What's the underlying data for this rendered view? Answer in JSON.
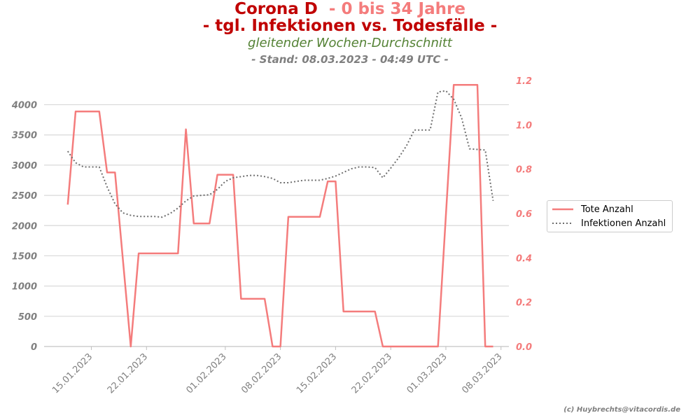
{
  "titles": {
    "line1_a": "Corona D",
    "line1_b": "- 0 bis 34 Jahre",
    "line2": "- tgl. Infektionen vs. Todesfälle -",
    "line3": "gleitender Wochen-Durchschnitt",
    "line4": "- Stand: 08.03.2023 - 04:49 UTC -"
  },
  "credit": "(c) Huybrechts@vitacordis.de",
  "colors": {
    "tote": "#f47c7c",
    "infektionen": "#6e6e6e",
    "title_dark": "#c00000",
    "subtitle_green": "#548235",
    "grid": "#d9d9d9",
    "axis_text": "#7f7f7f"
  },
  "chart_data": {
    "type": "line",
    "x_axis": {
      "type": "date",
      "range": [
        "2023-01-09",
        "2023-03-09"
      ],
      "tick_labels": [
        "15.01.2023",
        "22.01.2023",
        "01.02.2023",
        "08.02.2023",
        "15.02.2023",
        "22.02.2023",
        "01.03.2023",
        "08.03.2023"
      ],
      "tick_dates": [
        "2023-01-15",
        "2023-01-22",
        "2023-02-01",
        "2023-02-08",
        "2023-02-15",
        "2023-02-22",
        "2023-03-01",
        "2023-03-08"
      ]
    },
    "y_left": {
      "range": [
        0,
        4400
      ],
      "ticks": [
        0,
        500,
        1000,
        1500,
        2000,
        2500,
        3000,
        3500,
        4000
      ],
      "tick_labels": [
        "0",
        "500",
        "1000",
        "1500",
        "2000",
        "2500",
        "3000",
        "3500",
        "4000"
      ],
      "grid": true
    },
    "y_right": {
      "range": [
        0,
        1.2
      ],
      "ticks": [
        0.0,
        0.2,
        0.4,
        0.6,
        0.8,
        1.0,
        1.2
      ],
      "tick_labels": [
        "0.0",
        "0.2",
        "0.4",
        "0.6",
        "0.8",
        "1.0",
        "1.2"
      ]
    },
    "legend_position": "right",
    "series": [
      {
        "name": "Tote Anzahl",
        "axis": "right",
        "style": "solid",
        "points": [
          [
            "2023-01-12",
            0.64
          ],
          [
            "2023-01-13",
            1.06
          ],
          [
            "2023-01-16",
            1.06
          ],
          [
            "2023-01-17",
            0.785
          ],
          [
            "2023-01-18",
            0.785
          ],
          [
            "2023-01-20",
            0.0
          ],
          [
            "2023-01-21",
            0.42
          ],
          [
            "2023-01-26",
            0.42
          ],
          [
            "2023-01-27",
            0.98
          ],
          [
            "2023-01-28",
            0.555
          ],
          [
            "2023-01-30",
            0.555
          ],
          [
            "2023-01-31",
            0.775
          ],
          [
            "2023-02-02",
            0.775
          ],
          [
            "2023-02-03",
            0.215
          ],
          [
            "2023-02-06",
            0.215
          ],
          [
            "2023-02-07",
            0.0
          ],
          [
            "2023-02-08",
            0.0
          ],
          [
            "2023-02-09",
            0.585
          ],
          [
            "2023-02-13",
            0.585
          ],
          [
            "2023-02-14",
            0.745
          ],
          [
            "2023-02-15",
            0.745
          ],
          [
            "2023-02-16",
            0.158
          ],
          [
            "2023-02-20",
            0.158
          ],
          [
            "2023-02-21",
            0.0
          ],
          [
            "2023-02-28",
            0.0
          ],
          [
            "2023-03-02",
            1.18
          ],
          [
            "2023-03-05",
            1.18
          ],
          [
            "2023-03-06",
            0.0
          ],
          [
            "2023-03-07",
            0.0
          ]
        ]
      },
      {
        "name": "Infektionen Anzahl",
        "axis": "left",
        "style": "dotted",
        "points": [
          [
            "2023-01-12",
            3230
          ],
          [
            "2023-01-13",
            3040
          ],
          [
            "2023-01-14",
            2970
          ],
          [
            "2023-01-15",
            2970
          ],
          [
            "2023-01-16",
            2970
          ],
          [
            "2023-01-17",
            2640
          ],
          [
            "2023-01-18",
            2360
          ],
          [
            "2023-01-19",
            2210
          ],
          [
            "2023-01-20",
            2170
          ],
          [
            "2023-01-21",
            2150
          ],
          [
            "2023-01-22",
            2150
          ],
          [
            "2023-01-23",
            2150
          ],
          [
            "2023-01-24",
            2140
          ],
          [
            "2023-01-25",
            2200
          ],
          [
            "2023-01-26",
            2290
          ],
          [
            "2023-01-27",
            2410
          ],
          [
            "2023-01-28",
            2490
          ],
          [
            "2023-01-29",
            2500
          ],
          [
            "2023-01-30",
            2510
          ],
          [
            "2023-01-31",
            2600
          ],
          [
            "2023-02-01",
            2730
          ],
          [
            "2023-02-02",
            2790
          ],
          [
            "2023-02-03",
            2810
          ],
          [
            "2023-02-04",
            2830
          ],
          [
            "2023-02-05",
            2830
          ],
          [
            "2023-02-06",
            2810
          ],
          [
            "2023-02-07",
            2780
          ],
          [
            "2023-02-08",
            2710
          ],
          [
            "2023-02-09",
            2710
          ],
          [
            "2023-02-10",
            2730
          ],
          [
            "2023-02-11",
            2750
          ],
          [
            "2023-02-12",
            2750
          ],
          [
            "2023-02-13",
            2750
          ],
          [
            "2023-02-14",
            2780
          ],
          [
            "2023-02-15",
            2820
          ],
          [
            "2023-02-16",
            2880
          ],
          [
            "2023-02-17",
            2940
          ],
          [
            "2023-02-18",
            2970
          ],
          [
            "2023-02-19",
            2970
          ],
          [
            "2023-02-20",
            2960
          ],
          [
            "2023-02-21",
            2790
          ],
          [
            "2023-02-22",
            2950
          ],
          [
            "2023-02-23",
            3120
          ],
          [
            "2023-02-24",
            3320
          ],
          [
            "2023-02-25",
            3580
          ],
          [
            "2023-02-26",
            3580
          ],
          [
            "2023-02-27",
            3580
          ],
          [
            "2023-02-28",
            4210
          ],
          [
            "2023-03-01",
            4230
          ],
          [
            "2023-03-02",
            4090
          ],
          [
            "2023-03-03",
            3780
          ],
          [
            "2023-03-04",
            3270
          ],
          [
            "2023-03-05",
            3260
          ],
          [
            "2023-03-06",
            3250
          ],
          [
            "2023-03-07",
            2410
          ]
        ]
      }
    ]
  }
}
